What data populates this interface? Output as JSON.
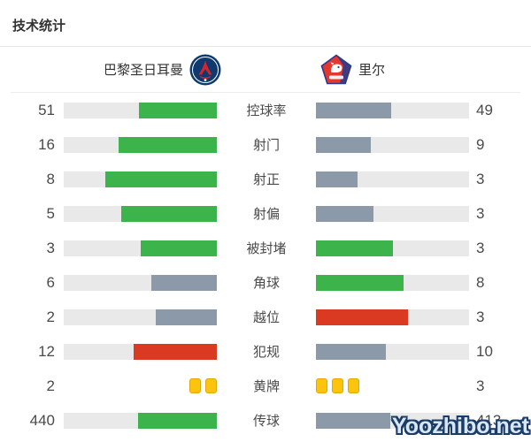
{
  "title": "技术统计",
  "header": {
    "home_team": "巴黎圣日耳曼",
    "away_team": "里尔"
  },
  "watermark": "Yoozhibo.net",
  "colors": {
    "green": "#3cb44b",
    "gray_blue": "#8c99a9",
    "red": "#d93a21",
    "yellow": "#fdc40e",
    "track": "#e9e9e9"
  },
  "chart_data": {
    "type": "bar",
    "orientation": "horizontal-paired",
    "title": "技术统计",
    "categories": [
      "控球率",
      "射门",
      "射正",
      "射偏",
      "被封堵",
      "角球",
      "越位",
      "犯规",
      "黄牌",
      "传球"
    ],
    "series": [
      {
        "name": "巴黎圣日耳曼",
        "values": [
          51,
          16,
          8,
          5,
          3,
          6,
          2,
          12,
          2,
          440
        ]
      },
      {
        "name": "里尔",
        "values": [
          49,
          9,
          3,
          3,
          3,
          8,
          3,
          10,
          3,
          413
        ]
      }
    ],
    "bar_rule": "fill length = value / (home value + away value)",
    "color_rule": "higher side green, lower side gray-blue; negative stats (越位, 犯规) higher side red; ties both green; 黄牌 shown as yellow card icons"
  },
  "rows": [
    {
      "label": "控球率",
      "display": "bar",
      "home": {
        "value": "51",
        "pct": 51,
        "color": "green"
      },
      "away": {
        "value": "49",
        "pct": 49,
        "color": "gray"
      }
    },
    {
      "label": "射门",
      "display": "bar",
      "home": {
        "value": "16",
        "pct": 64,
        "color": "green"
      },
      "away": {
        "value": "9",
        "pct": 36,
        "color": "gray"
      }
    },
    {
      "label": "射正",
      "display": "bar",
      "home": {
        "value": "8",
        "pct": 72.7,
        "color": "green"
      },
      "away": {
        "value": "3",
        "pct": 27.3,
        "color": "gray"
      }
    },
    {
      "label": "射偏",
      "display": "bar",
      "home": {
        "value": "5",
        "pct": 62.5,
        "color": "green"
      },
      "away": {
        "value": "3",
        "pct": 37.5,
        "color": "gray"
      }
    },
    {
      "label": "被封堵",
      "display": "bar",
      "home": {
        "value": "3",
        "pct": 50,
        "color": "green"
      },
      "away": {
        "value": "3",
        "pct": 50,
        "color": "green"
      }
    },
    {
      "label": "角球",
      "display": "bar",
      "home": {
        "value": "6",
        "pct": 42.9,
        "color": "gray"
      },
      "away": {
        "value": "8",
        "pct": 57.1,
        "color": "green"
      }
    },
    {
      "label": "越位",
      "display": "bar",
      "home": {
        "value": "2",
        "pct": 40,
        "color": "gray"
      },
      "away": {
        "value": "3",
        "pct": 60,
        "color": "red"
      }
    },
    {
      "label": "犯规",
      "display": "bar",
      "home": {
        "value": "12",
        "pct": 54.5,
        "color": "red"
      },
      "away": {
        "value": "10",
        "pct": 45.5,
        "color": "gray"
      }
    },
    {
      "label": "黄牌",
      "display": "cards",
      "home": {
        "value": "2",
        "cards": 2
      },
      "away": {
        "value": "3",
        "cards": 3
      }
    },
    {
      "label": "传球",
      "display": "bar",
      "home": {
        "value": "440",
        "pct": 51.6,
        "color": "green"
      },
      "away": {
        "value": "413",
        "pct": 48.4,
        "color": "gray"
      }
    }
  ]
}
